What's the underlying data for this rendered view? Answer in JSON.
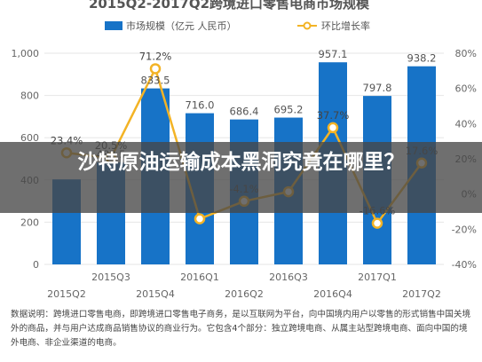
{
  "chart_data": {
    "type": "bar",
    "title": "2015Q2-2017Q2跨境进口零售电商市场规模",
    "categories": [
      "2015Q2",
      "2015Q3",
      "2015Q4",
      "2016Q1",
      "2016Q2",
      "2016Q3",
      "2016Q4",
      "2017Q1",
      "2017Q2"
    ],
    "series": [
      {
        "name": "市场规模（亿元 人民币）",
        "type": "bar",
        "axis": "left",
        "values": [
          402.5,
          482.5,
          833.5,
          716.0,
          686.4,
          695.2,
          957.1,
          797.8,
          938.2
        ],
        "labels": [
          "",
          "482.5",
          "833.5",
          "716.0",
          "686.4",
          "695.2",
          "957.1",
          "797.8",
          "938.2"
        ]
      },
      {
        "name": "环比增长率",
        "type": "line",
        "axis": "right",
        "values": [
          23.4,
          20.5,
          71.2,
          -14.1,
          -4.1,
          1.3,
          37.7,
          -16.6,
          17.6
        ],
        "labels": [
          "23.4%",
          "20.5%",
          "71.2%",
          "",
          "-4.1%",
          "",
          "37.7%",
          "-16.6%",
          "17.6%"
        ]
      }
    ],
    "y_left": {
      "ticks": [
        "1,000",
        "800",
        "600",
        "400",
        "200",
        "0"
      ],
      "min": 0,
      "max": 1000
    },
    "y_right": {
      "ticks": [
        "80%",
        "60%",
        "40%",
        "20%",
        "0%",
        "-20%",
        "-40%"
      ],
      "min": -40,
      "max": 80
    },
    "x_tick_labels": [
      "2015Q2",
      "2015Q3",
      "2015Q4",
      "2016Q1",
      "2016Q2",
      "2016Q3",
      "2016Q4",
      "2017Q1",
      "2017Q2"
    ],
    "legend_position": "top-center",
    "colors": {
      "bar": "#1773c7",
      "line": "#f3b325",
      "grid": "#e6e6e6"
    }
  },
  "overlay": {
    "title": "沙特原油运输成本黑洞究竟在哪里？"
  },
  "note": {
    "text": "数据说明：跨境进口零售电商，即跨境进口零售电子商务，是以互联网为平台，向中国境内用户以零售的形式销售中国关境外的商品，并与用户达成商品销售协议的商业行为。它包含4个部分：独立跨境电商、从属主站型跨境电商、面向中国的境外电商、非企业渠道的电商。"
  }
}
